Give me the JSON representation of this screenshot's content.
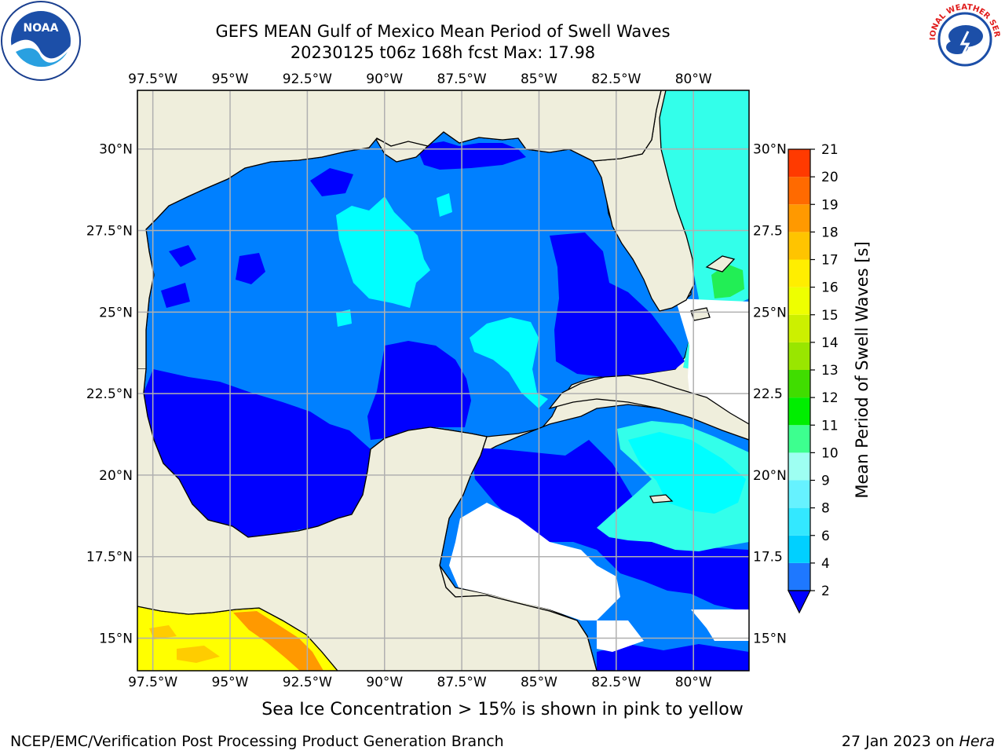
{
  "title": {
    "line1": "GEFS MEAN Gulf of Mexico Mean Period of Swell Waves",
    "line2": "20230125 t06z 168h fcst   Max: 17.98"
  },
  "lon_ticks": [
    {
      "value": -97.5,
      "label": "97.5°W"
    },
    {
      "value": -95,
      "label": "95°W"
    },
    {
      "value": -92.5,
      "label": "92.5°W"
    },
    {
      "value": -90,
      "label": "90°W"
    },
    {
      "value": -87.5,
      "label": "87.5°W"
    },
    {
      "value": -85,
      "label": "85°W"
    },
    {
      "value": -82.5,
      "label": "82.5°W"
    },
    {
      "value": -80,
      "label": "80°W"
    }
  ],
  "lat_ticks": [
    {
      "value": 30,
      "left": "30°N",
      "right": "30°N"
    },
    {
      "value": 27.5,
      "left": "27.5°N",
      "right": "27.5"
    },
    {
      "value": 25,
      "left": "25°N",
      "right": "25°N"
    },
    {
      "value": 22.5,
      "left": "22.5°N",
      "right": "22.5"
    },
    {
      "value": 20,
      "left": "20°N",
      "right": "20°N"
    },
    {
      "value": 17.5,
      "left": "17.5°N",
      "right": "17.5"
    },
    {
      "value": 15,
      "left": "15°N",
      "right": "15°N"
    }
  ],
  "map_extent": {
    "lon": [
      -98,
      -78.2
    ],
    "lat": [
      14,
      31.8
    ]
  },
  "colorbar": {
    "label": "Mean Period of Swell Waves [s]",
    "ticks": [
      "2",
      "4",
      "6",
      "8",
      "9",
      "10",
      "11",
      "12",
      "13",
      "14",
      "15",
      "16",
      "17",
      "18",
      "19",
      "20",
      "21"
    ],
    "colors": [
      "#1e78ff",
      "#00d0ff",
      "#33e8ff",
      "#66f2ff",
      "#9efff2",
      "#3dff8f",
      "#00ee00",
      "#40dd00",
      "#99e600",
      "#ccf000",
      "#eeff00",
      "#ffee00",
      "#ffc400",
      "#ff9900",
      "#ff6a00",
      "#ff3a00",
      "#ff0000"
    ],
    "extend_color": "#0000ff"
  },
  "colors": {
    "land": "#efeedc",
    "period_lt2": "#0000ff",
    "period_2_4": "#0080ff",
    "period_4_6": "#00ffff",
    "period_6_8": "#33ffea",
    "period_10_11": "#22ee55",
    "period_14_17": "#ffff00",
    "period_17_18": "#ff9900",
    "grid": "#b0b0b0"
  },
  "footer": {
    "note": "Sea Ice Concentration > 15% is shown in pink to yellow",
    "credit": "NCEP/EMC/Verification Post Processing Product Generation Branch",
    "date": "27 Jan 2023 on ",
    "machine": "Hera"
  },
  "logos": {
    "left": "noaa-logo",
    "left_text": "NOAA",
    "right": "national-weather-service-logo",
    "right_text": "NATIONAL WEATHER SERVICE"
  }
}
